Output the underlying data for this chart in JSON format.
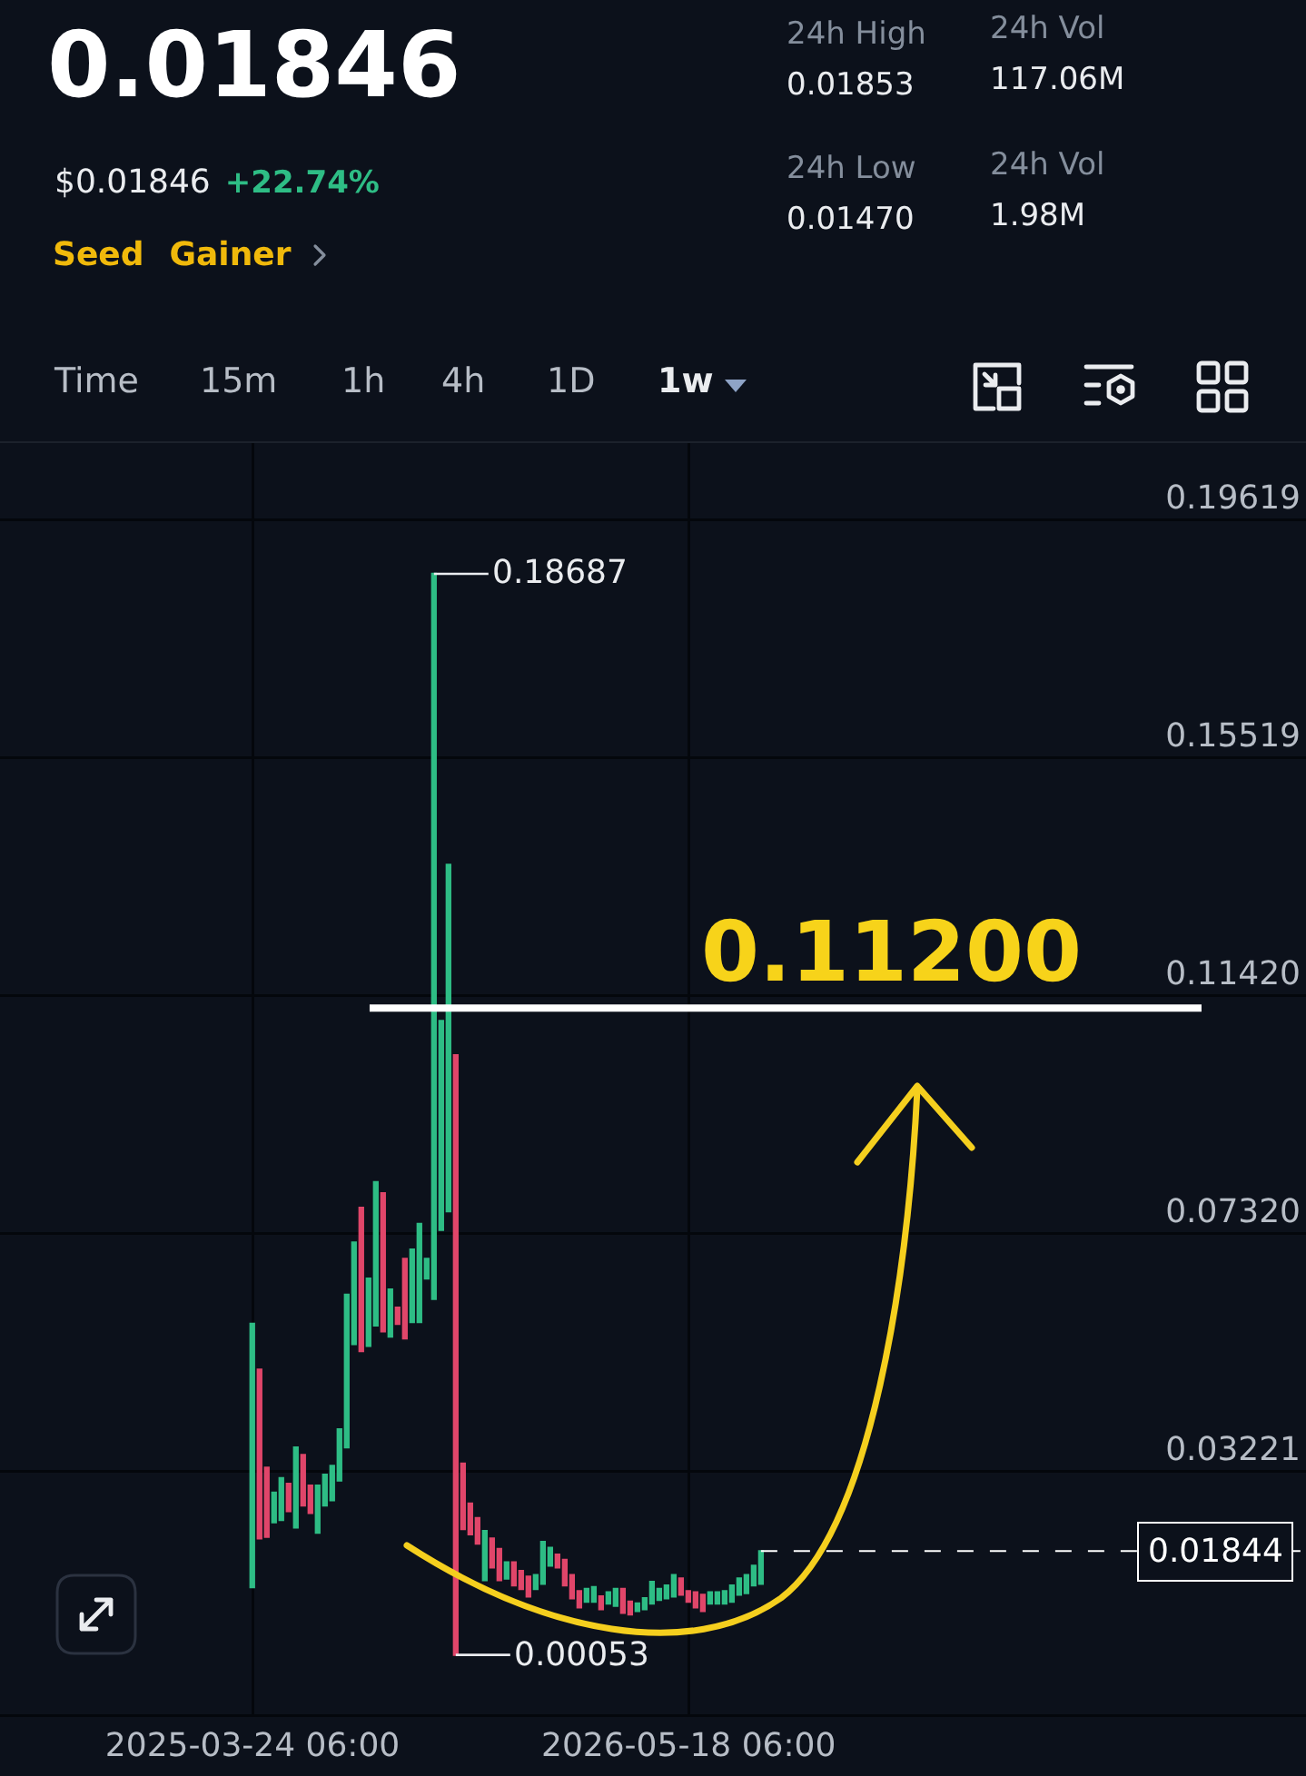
{
  "chart_data": [
    {
      "type": "other",
      "title": "0.01846",
      "annotations": [
        "$0.01846",
        "+22.74%",
        "Seed",
        "Gainer",
        "24h High",
        "0.01853",
        "24h Low",
        "0.01470",
        "24h Vol",
        "117.06M",
        "24h Vol",
        "1.98M",
        "Time",
        "15m",
        "1h",
        "4h",
        "1D",
        "1w"
      ]
    },
    {
      "type": "candlestick",
      "x": [
        "2025-03-24",
        "2025-03-31",
        "2025-04-07",
        "2025-04-14",
        "2025-04-21",
        "2025-04-28",
        "2025-05-05",
        "2025-05-12",
        "2025-05-19",
        "2025-05-26",
        "2025-06-02",
        "2025-06-09",
        "2025-06-16",
        "2025-06-23",
        "2025-06-30",
        "2025-07-07",
        "2025-07-14",
        "2025-07-21",
        "2025-07-28",
        "2025-08-04",
        "2025-08-11",
        "2025-08-18",
        "2025-08-25",
        "2025-09-01",
        "2025-09-08",
        "2025-09-15",
        "2025-09-22",
        "2025-09-29",
        "2025-10-06",
        "2025-10-13",
        "2025-10-20",
        "2025-10-27",
        "2025-11-03",
        "2025-11-10",
        "2025-11-17",
        "2025-11-24",
        "2025-12-01",
        "2025-12-08",
        "2025-12-15",
        "2025-12-22",
        "2025-12-29",
        "2026-01-05",
        "2026-01-12",
        "2026-01-19",
        "2026-01-26",
        "2026-02-02",
        "2026-02-09",
        "2026-02-16",
        "2026-02-23",
        "2026-03-02",
        "2026-03-09",
        "2026-03-16",
        "2026-03-23",
        "2026-03-30",
        "2026-04-06",
        "2026-04-13",
        "2026-04-20",
        "2026-04-27",
        "2026-05-04",
        "2026-05-11",
        "2026-05-18",
        "2026-05-25",
        "2026-06-01",
        "2026-06-08",
        "2026-06-15",
        "2026-06-22",
        "2026-06-29",
        "2026-07-06",
        "2026-07-13",
        "2026-07-20",
        "2026-07-27"
      ],
      "ohlc": [
        [
          0.0122,
          0.0576,
          0.0122,
          0.0576
        ],
        [
          0.0497,
          0.0497,
          0.0206,
          0.0206
        ],
        [
          0.0328,
          0.0328,
          0.0209,
          0.0209
        ],
        [
          0.0234,
          0.0285,
          0.0234,
          0.0285
        ],
        [
          0.0238,
          0.031,
          0.0238,
          0.031
        ],
        [
          0.03,
          0.03,
          0.0253,
          0.0253
        ],
        [
          0.0225,
          0.0363,
          0.0225,
          0.0363
        ],
        [
          0.035,
          0.035,
          0.0263,
          0.0263
        ],
        [
          0.0297,
          0.0297,
          0.025,
          0.025
        ],
        [
          0.0216,
          0.0297,
          0.0216,
          0.0297
        ],
        [
          0.0263,
          0.0316,
          0.0263,
          0.0316
        ],
        [
          0.0272,
          0.0331,
          0.0272,
          0.0331
        ],
        [
          0.0306,
          0.0394,
          0.0306,
          0.0394
        ],
        [
          0.0363,
          0.0626,
          0.0363,
          0.0626
        ],
        [
          0.0541,
          0.0716,
          0.0541,
          0.0716
        ],
        [
          0.0776,
          0.0776,
          0.0529,
          0.0529
        ],
        [
          0.0538,
          0.0654,
          0.0538,
          0.0654
        ],
        [
          0.0573,
          0.082,
          0.0573,
          0.082
        ],
        [
          0.0801,
          0.0801,
          0.0563,
          0.0563
        ],
        [
          0.0554,
          0.0635,
          0.0554,
          0.0635
        ],
        [
          0.0604,
          0.0604,
          0.0576,
          0.0576
        ],
        [
          0.0688,
          0.0688,
          0.0551,
          0.0551
        ],
        [
          0.0579,
          0.0704,
          0.0579,
          0.0704
        ],
        [
          0.0579,
          0.0748,
          0.0579,
          0.0748
        ],
        [
          0.0654,
          0.0688,
          0.0654,
          0.0688
        ],
        [
          0.0619,
          0.18687,
          0.0619,
          0.18687
        ],
        [
          0.0738,
          0.1098,
          0.0738,
          0.1098
        ],
        [
          0.077,
          0.1367,
          0.077,
          0.1367
        ],
        [
          0.1039,
          0.1039,
          0.00053,
          0.00053
        ],
        [
          0.0335,
          0.0335,
          0.0222,
          0.0222
        ],
        [
          0.0266,
          0.0266,
          0.0213,
          0.0213
        ],
        [
          0.0241,
          0.0241,
          0.0197,
          0.0197
        ],
        [
          0.0134,
          0.0219,
          0.0134,
          0.0219
        ],
        [
          0.0206,
          0.0206,
          0.0156,
          0.0156
        ],
        [
          0.0188,
          0.0188,
          0.0134,
          0.0134
        ],
        [
          0.0137,
          0.0165,
          0.0137,
          0.0165
        ],
        [
          0.0165,
          0.0165,
          0.0125,
          0.0125
        ],
        [
          0.015,
          0.015,
          0.0119,
          0.0119
        ],
        [
          0.014,
          0.014,
          0.0106,
          0.0106
        ],
        [
          0.0119,
          0.0143,
          0.0119,
          0.0143
        ],
        [
          0.0128,
          0.02,
          0.0128,
          0.02
        ],
        [
          0.0159,
          0.019,
          0.0159,
          0.019
        ],
        [
          0.0178,
          0.0178,
          0.0156,
          0.0156
        ],
        [
          0.0169,
          0.0169,
          0.0125,
          0.0125
        ],
        [
          0.0143,
          0.0143,
          0.0103,
          0.0103
        ],
        [
          0.0115,
          0.0115,
          0.0087,
          0.0087
        ],
        [
          0.0097,
          0.0119,
          0.0097,
          0.0119
        ],
        [
          0.0097,
          0.0122,
          0.0097,
          0.0122
        ],
        [
          0.0106,
          0.0106,
          0.0084,
          0.0084
        ],
        [
          0.0094,
          0.0113,
          0.0094,
          0.0113
        ],
        [
          0.009,
          0.0119,
          0.009,
          0.0119
        ],
        [
          0.0119,
          0.0119,
          0.0078,
          0.0078
        ],
        [
          0.0097,
          0.0097,
          0.0075,
          0.0075
        ],
        [
          0.0081,
          0.0094,
          0.0081,
          0.0094
        ],
        [
          0.0084,
          0.0103,
          0.0084,
          0.0103
        ],
        [
          0.0094,
          0.0131,
          0.0094,
          0.0131
        ],
        [
          0.01,
          0.0119,
          0.01,
          0.0119
        ],
        [
          0.0103,
          0.0125,
          0.0103,
          0.0125
        ],
        [
          0.0106,
          0.0143,
          0.0106,
          0.0143
        ],
        [
          0.0137,
          0.0137,
          0.0109,
          0.0109
        ],
        [
          0.0115,
          0.0115,
          0.0097,
          0.0097
        ],
        [
          0.0113,
          0.0113,
          0.0087,
          0.0087
        ],
        [
          0.0109,
          0.0109,
          0.0081,
          0.0081
        ],
        [
          0.0094,
          0.0113,
          0.0094,
          0.0113
        ],
        [
          0.0094,
          0.0113,
          0.0094,
          0.0113
        ],
        [
          0.0094,
          0.0115,
          0.0094,
          0.0115
        ],
        [
          0.0097,
          0.0125,
          0.0097,
          0.0125
        ],
        [
          0.0109,
          0.0137,
          0.0109,
          0.0137
        ],
        [
          0.0112,
          0.0143,
          0.0112,
          0.0143
        ],
        [
          0.0125,
          0.0159,
          0.0125,
          0.0159
        ],
        [
          0.0128,
          0.0185,
          0.0128,
          0.0184
        ]
      ],
      "colors": [
        "#2ebd85",
        "#e0466a",
        "#e0466a",
        "#2ebd85",
        "#2ebd85",
        "#e0466a",
        "#2ebd85",
        "#e0466a",
        "#e0466a",
        "#2ebd85",
        "#2ebd85",
        "#2ebd85",
        "#2ebd85",
        "#2ebd85",
        "#2ebd85",
        "#e0466a",
        "#2ebd85",
        "#2ebd85",
        "#e0466a",
        "#2ebd85",
        "#e0466a",
        "#e0466a",
        "#2ebd85",
        "#2ebd85",
        "#2ebd85",
        "#2ebd85",
        "#2ebd85",
        "#2ebd85",
        "#e0466a",
        "#e0466a",
        "#e0466a",
        "#e0466a",
        "#2ebd85",
        "#e0466a",
        "#e0466a",
        "#2ebd85",
        "#e0466a",
        "#e0466a",
        "#e0466a",
        "#2ebd85",
        "#2ebd85",
        "#2ebd85",
        "#e0466a",
        "#e0466a",
        "#e0466a",
        "#e0466a",
        "#2ebd85",
        "#2ebd85",
        "#e0466a",
        "#2ebd85",
        "#2ebd85",
        "#e0466a",
        "#e0466a",
        "#2ebd85",
        "#2ebd85",
        "#2ebd85",
        "#2ebd85",
        "#2ebd85",
        "#2ebd85",
        "#e0466a",
        "#e0466a",
        "#e0466a",
        "#e0466a",
        "#2ebd85",
        "#2ebd85",
        "#2ebd85",
        "#2ebd85",
        "#2ebd85",
        "#2ebd85",
        "#2ebd85",
        "#2ebd85"
      ],
      "xlim": [
        "2024-07-24",
        "2028-01-03"
      ],
      "xticks": [
        {
          "value": "2025-03-24T06:00",
          "label": "2025-03-24 06:00"
        },
        {
          "value": "2026-05-18T06:00",
          "label": "2026-05-18 06:00"
        }
      ],
      "ylim": [
        -0.0097,
        0.2094
      ],
      "yticks": [
        0.19619,
        0.15519,
        {
          "value": 0.1142,
          "label": "0.11420"
        },
        {
          "value": 0.0732,
          "label": "0.07320"
        },
        0.03221
      ],
      "grid": true,
      "ref_lines": [
        {
          "axis": "y",
          "value": 0.112,
          "label": "0.11200",
          "color": "#ffffff"
        },
        {
          "axis": "y",
          "value": 0.01844,
          "label": "0.01844",
          "color": "#ffffff",
          "line_style": "dashed"
        }
      ],
      "annotations": [
        {
          "text": "0.18687",
          "x": "2025-09-15",
          "y": 0.18687
        },
        {
          "text": "0.00053",
          "x": "2025-10-06",
          "y": 0.00053
        }
      ]
    }
  ]
}
